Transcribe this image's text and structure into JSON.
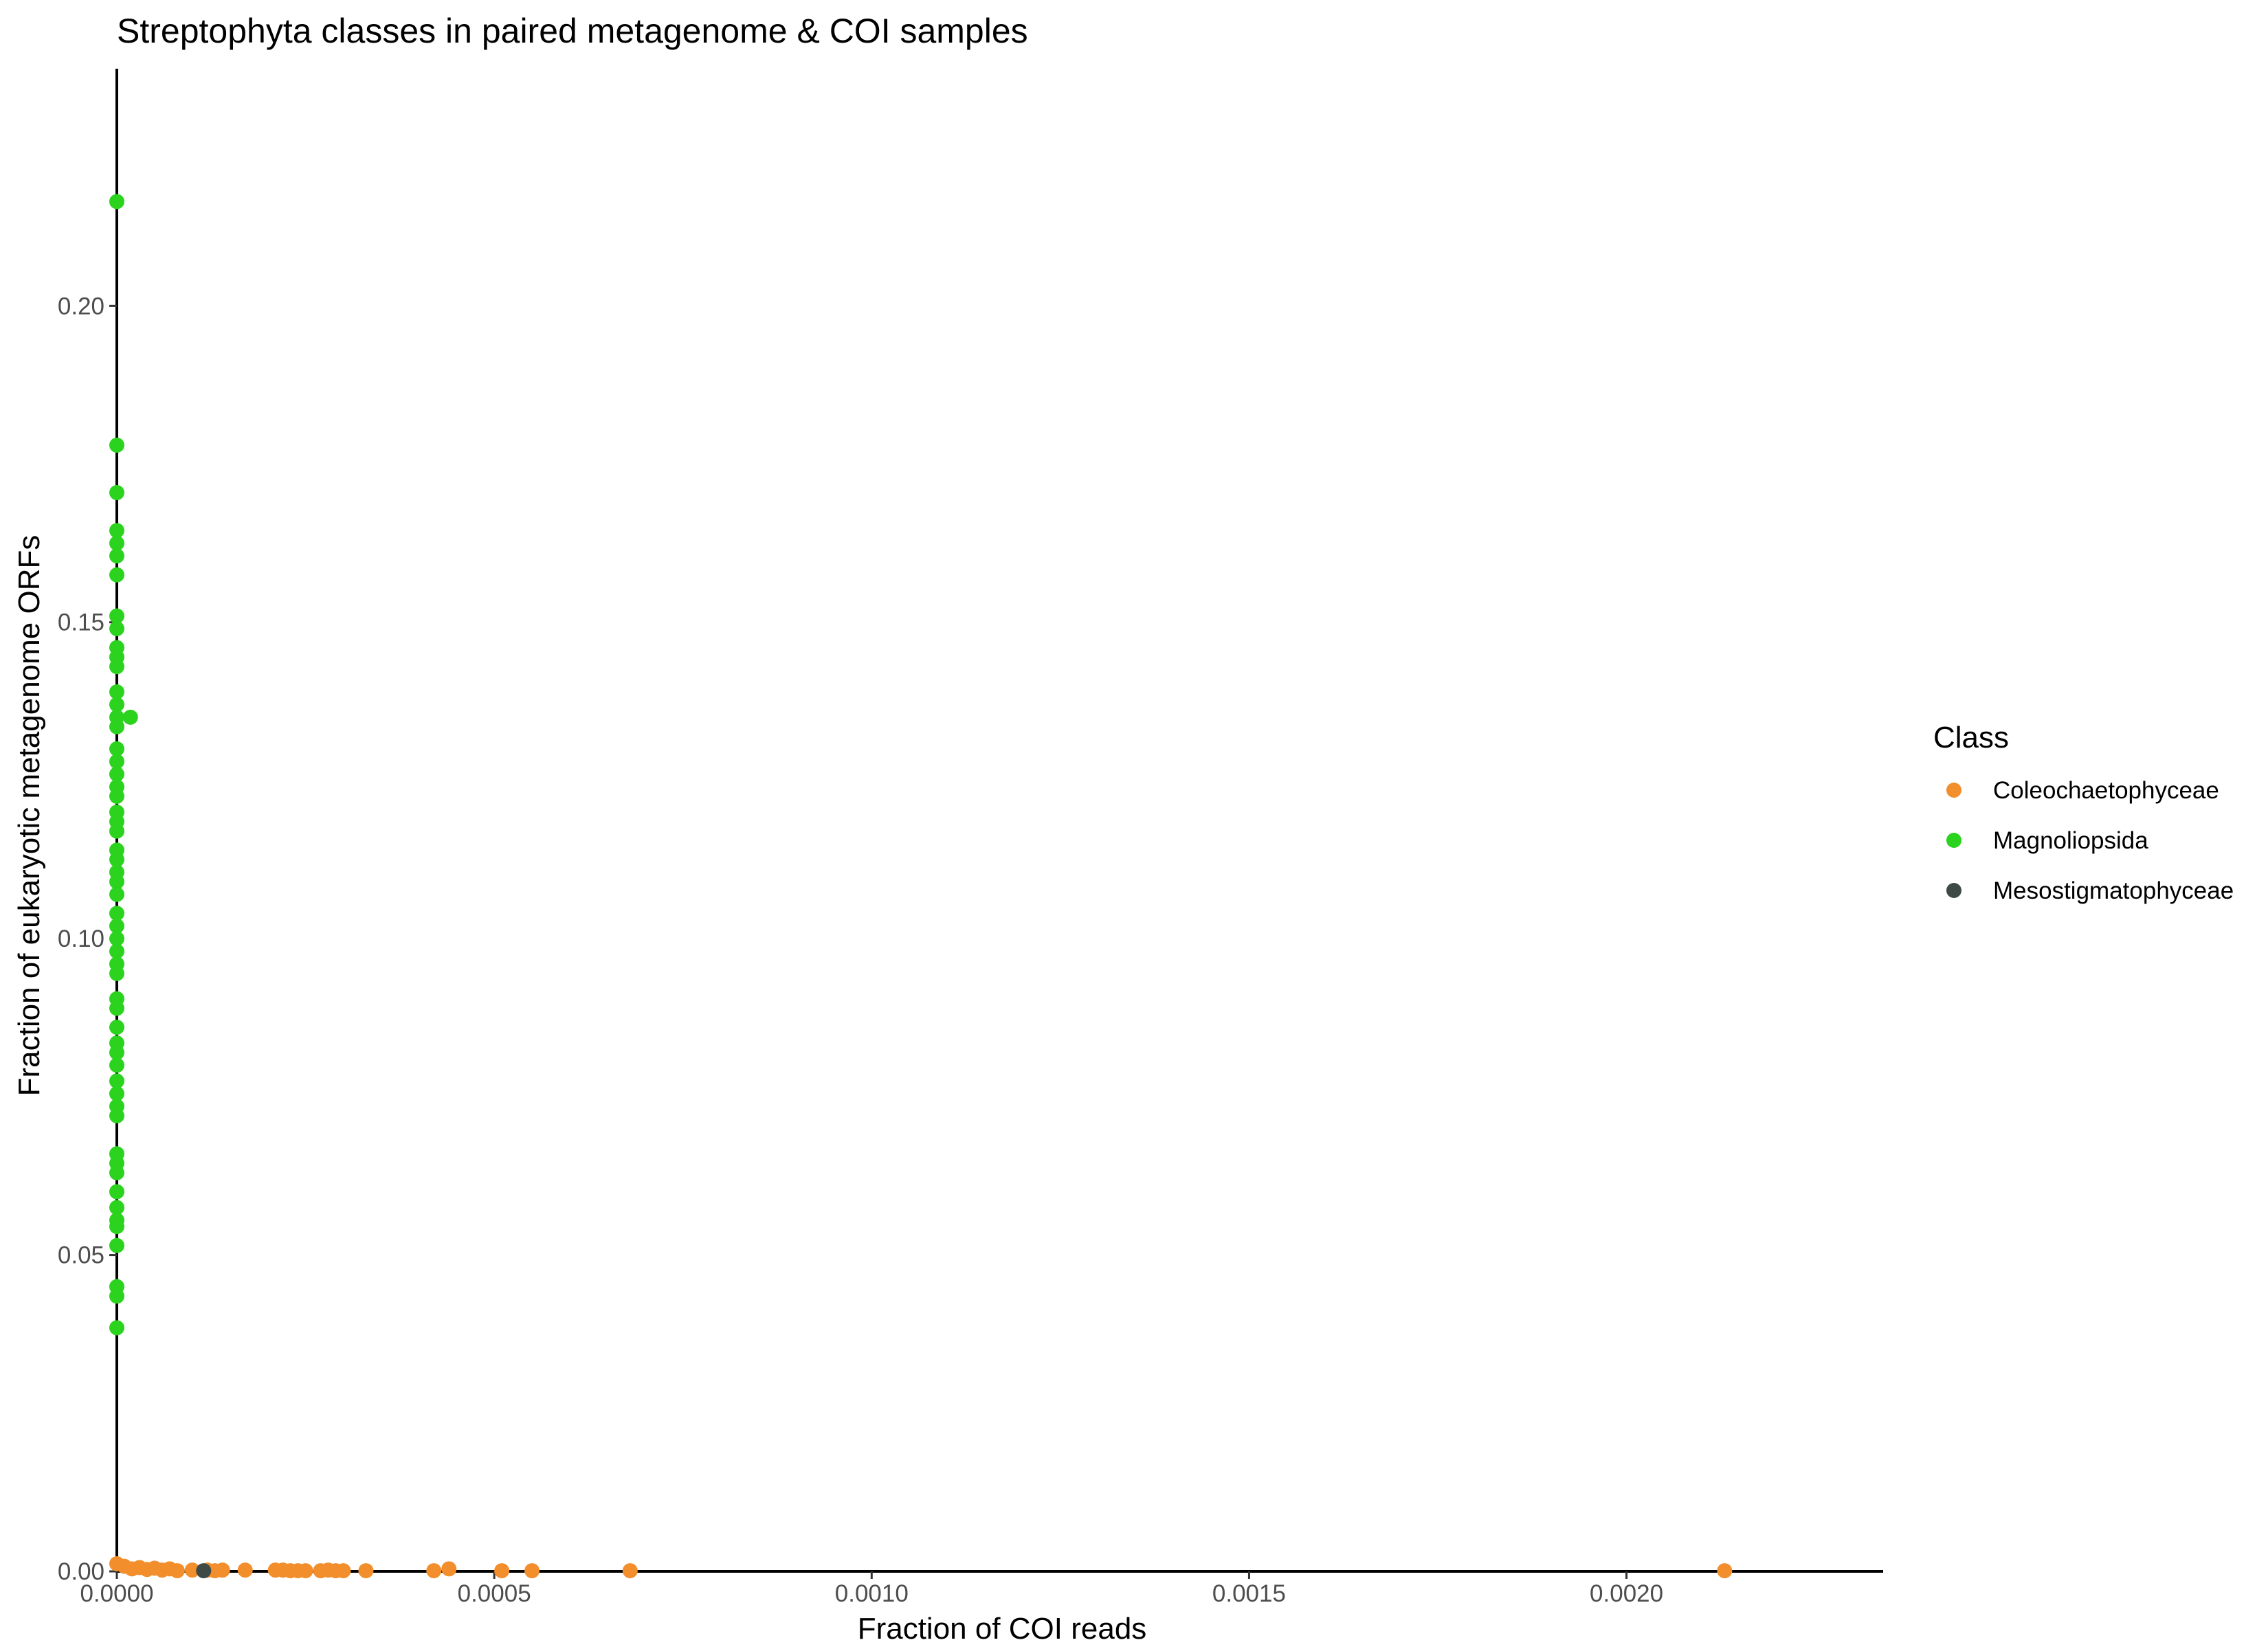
{
  "chart_data": {
    "type": "scatter",
    "title": "Streptophyta classes in paired metagenome & COI samples",
    "xlabel": "Fraction of COI reads",
    "ylabel": "Fraction of eukaryotic metagenome ORFs",
    "xlim": [
      0,
      0.00234
    ],
    "ylim": [
      0,
      0.2375
    ],
    "x_ticks": [
      "0.0000",
      "0.0005",
      "0.0010",
      "0.0015",
      "0.0020"
    ],
    "x_tick_values": [
      0,
      0.0005,
      0.001,
      0.0015,
      0.002
    ],
    "y_ticks": [
      "0.00",
      "0.05",
      "0.10",
      "0.15",
      "0.20"
    ],
    "y_tick_values": [
      0,
      0.05,
      0.1,
      0.15,
      0.2
    ],
    "grid": false,
    "legend": {
      "title": "Class",
      "position": "right"
    },
    "series": [
      {
        "name": "Coleochaetophyceae",
        "color": "#F28E2B",
        "points": [
          [
            0.0,
            0.0012
          ],
          [
            1e-05,
            0.0008
          ],
          [
            2e-05,
            0.0004
          ],
          [
            3e-05,
            0.0006
          ],
          [
            4e-05,
            0.0003
          ],
          [
            5e-05,
            0.0005
          ],
          [
            6e-05,
            0.0002
          ],
          [
            7e-05,
            0.0004
          ],
          [
            8e-05,
            0.0001
          ],
          [
            0.0001,
            0.0002
          ],
          [
            0.00012,
            0.0002
          ],
          [
            0.00013,
            0.0001
          ],
          [
            0.00014,
            0.0002
          ],
          [
            0.00017,
            0.0002
          ],
          [
            0.00021,
            0.0002
          ],
          [
            0.00022,
            0.0002
          ],
          [
            0.00023,
            0.0001
          ],
          [
            0.00024,
            0.0001
          ],
          [
            0.00025,
            0.0001
          ],
          [
            0.00027,
            0.0001
          ],
          [
            0.00028,
            0.0002
          ],
          [
            0.00029,
            0.0001
          ],
          [
            0.0003,
            0.0001
          ],
          [
            0.00033,
            0.0001
          ],
          [
            0.00042,
            0.0001
          ],
          [
            0.00044,
            0.0004
          ],
          [
            0.00051,
            0.0001
          ],
          [
            0.00055,
            0.0001
          ],
          [
            0.00068,
            0.0001
          ],
          [
            0.00213,
            0.0001
          ]
        ]
      },
      {
        "name": "Magnoliopsida",
        "color": "#2BD21E",
        "points": [
          [
            0.0,
            0.2165
          ],
          [
            0.0,
            0.178
          ],
          [
            0.0,
            0.1705
          ],
          [
            0.0,
            0.1645
          ],
          [
            0.0,
            0.1625
          ],
          [
            0.0,
            0.1605
          ],
          [
            0.0,
            0.1575
          ],
          [
            0.0,
            0.151
          ],
          [
            0.0,
            0.149
          ],
          [
            0.0,
            0.146
          ],
          [
            0.0,
            0.1445
          ],
          [
            0.0,
            0.143
          ],
          [
            0.0,
            0.139
          ],
          [
            0.0,
            0.137
          ],
          [
            0.0,
            0.135
          ],
          [
            0.0,
            0.1335
          ],
          [
            0.0,
            0.13
          ],
          [
            0.0,
            0.128
          ],
          [
            0.0,
            0.126
          ],
          [
            0.0,
            0.124
          ],
          [
            0.0,
            0.1225
          ],
          [
            0.0,
            0.12
          ],
          [
            0.0,
            0.1185
          ],
          [
            0.0,
            0.117
          ],
          [
            0.0,
            0.114
          ],
          [
            0.0,
            0.1125
          ],
          [
            0.0,
            0.1105
          ],
          [
            0.0,
            0.109
          ],
          [
            0.0,
            0.107
          ],
          [
            0.0,
            0.104
          ],
          [
            0.0,
            0.102
          ],
          [
            0.0,
            0.1
          ],
          [
            0.0,
            0.098
          ],
          [
            0.0,
            0.096
          ],
          [
            0.0,
            0.0945
          ],
          [
            0.0,
            0.0905
          ],
          [
            0.0,
            0.089
          ],
          [
            0.0,
            0.086
          ],
          [
            0.0,
            0.0835
          ],
          [
            0.0,
            0.082
          ],
          [
            0.0,
            0.08
          ],
          [
            0.0,
            0.0775
          ],
          [
            0.0,
            0.0755
          ],
          [
            0.0,
            0.0735
          ],
          [
            0.0,
            0.072
          ],
          [
            0.0,
            0.066
          ],
          [
            0.0,
            0.0645
          ],
          [
            0.0,
            0.063
          ],
          [
            0.0,
            0.06
          ],
          [
            0.0,
            0.0575
          ],
          [
            0.0,
            0.0555
          ],
          [
            0.0,
            0.0545
          ],
          [
            0.0,
            0.0515
          ],
          [
            0.0,
            0.045
          ],
          [
            0.0,
            0.0435
          ],
          [
            0.0,
            0.0385
          ],
          [
            1.8e-05,
            0.135
          ]
        ]
      },
      {
        "name": "Mesostigmatophyceae",
        "color": "#3D4A46",
        "points": [
          [
            0.000115,
            0.0001
          ]
        ]
      }
    ]
  }
}
